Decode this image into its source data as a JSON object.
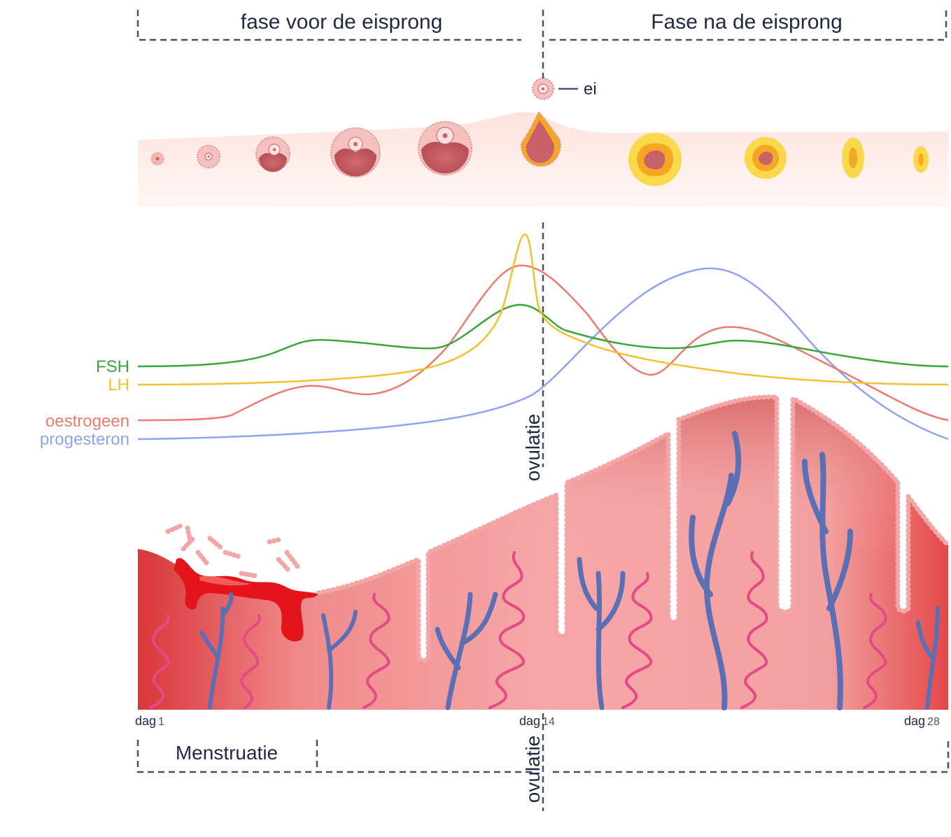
{
  "phases": {
    "before": "fase voor de eisprong",
    "after": "Fase na de eisprong"
  },
  "egg_label": "ei",
  "ovulation_label": "ovulatie",
  "menstruation_label": "Menstruatie",
  "hormones": [
    {
      "id": "fsh",
      "label": "FSH",
      "color": "#3aa63a"
    },
    {
      "id": "lh",
      "label": "LH",
      "color": "#f2c12e"
    },
    {
      "id": "oestrogen",
      "label": "oestrogeen",
      "color": "#ee7a6f"
    },
    {
      "id": "progesterone",
      "label": "progesteron",
      "color": "#8fa3ef"
    }
  ],
  "days": [
    {
      "word": "dag",
      "num": "1"
    },
    {
      "word": "dag",
      "num": "14"
    },
    {
      "word": "dag",
      "num": "28"
    }
  ],
  "colors": {
    "divider": "#4a5066",
    "tissue_dark": "#d9363a",
    "tissue_light": "#f6a3a3",
    "vein": "#5b6fb5",
    "artery": "#e34a86",
    "follicle": "#c8616a",
    "corpus_yellow": "#f9d84a",
    "corpus_orange": "#f5a623"
  }
}
